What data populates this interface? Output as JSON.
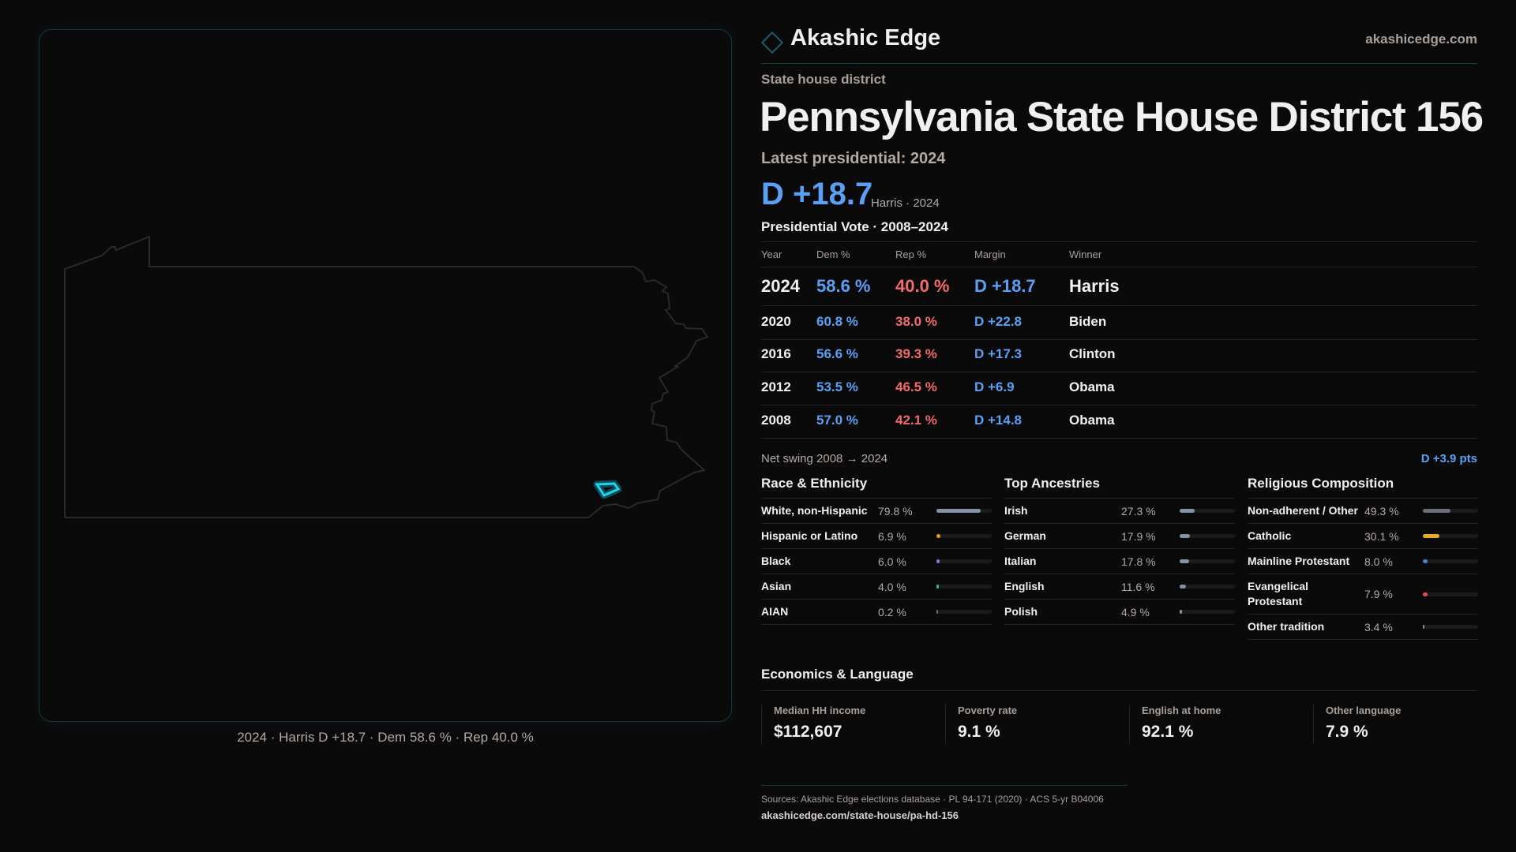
{
  "map": {
    "caption": "2024 · Harris D +18.7 · Dem 58.6 % · Rep 40.0 %",
    "highlight_color": "#22d3ee"
  },
  "header": {
    "brand": "Akashic Edge",
    "site": "akashicedge.com"
  },
  "kicker": "State house district",
  "title": "Pennsylvania State House District 156",
  "latest": {
    "label": "Latest presidential: 2024",
    "margin": "D +18.7",
    "sub": "Harris · 2024"
  },
  "table": {
    "title": "Presidential Vote · 2008–2024",
    "headers": [
      "Year",
      "Dem %",
      "Rep %",
      "Margin",
      "Winner"
    ],
    "rows": [
      {
        "year": "2024",
        "dem": "58.6 %",
        "rep": "40.0 %",
        "margin": "D +18.7",
        "winner": "Harris"
      },
      {
        "year": "2020",
        "dem": "60.8 %",
        "rep": "38.0 %",
        "margin": "D +22.8",
        "winner": "Biden"
      },
      {
        "year": "2016",
        "dem": "56.6 %",
        "rep": "39.3 %",
        "margin": "D +17.3",
        "winner": "Clinton"
      },
      {
        "year": "2012",
        "dem": "53.5 %",
        "rep": "46.5 %",
        "margin": "D +6.9",
        "winner": "Obama"
      },
      {
        "year": "2008",
        "dem": "57.0 %",
        "rep": "42.1 %",
        "margin": "D +14.8",
        "winner": "Obama"
      }
    ]
  },
  "swing": {
    "label": "Net swing 2008 → 2024",
    "value": "D +3.9 pts"
  },
  "race": {
    "title": "Race & Ethnicity",
    "items": [
      {
        "label": "White, non-Hispanic",
        "value": "79.8 %",
        "pct": 79.8,
        "color": "#8492a3"
      },
      {
        "label": "Hispanic or Latino",
        "value": "6.9 %",
        "pct": 6.9,
        "color": "#e3a21a"
      },
      {
        "label": "Black",
        "value": "6.0 %",
        "pct": 6.0,
        "color": "#8b6fd9"
      },
      {
        "label": "Asian",
        "value": "4.0 %",
        "pct": 4.0,
        "color": "#2fb98a"
      },
      {
        "label": "AIAN",
        "value": "0.2 %",
        "pct": 0.2,
        "color": "#6a6f7a"
      }
    ]
  },
  "ancestry": {
    "title": "Top Ancestries",
    "items": [
      {
        "label": "Irish",
        "value": "27.3 %",
        "pct": 27.3,
        "color": "#8492a3"
      },
      {
        "label": "German",
        "value": "17.9 %",
        "pct": 17.9,
        "color": "#8492a3"
      },
      {
        "label": "Italian",
        "value": "17.8 %",
        "pct": 17.8,
        "color": "#8492a3"
      },
      {
        "label": "English",
        "value": "11.6 %",
        "pct": 11.6,
        "color": "#8492a3"
      },
      {
        "label": "Polish",
        "value": "4.9 %",
        "pct": 4.9,
        "color": "#8492a3"
      }
    ]
  },
  "religion": {
    "title": "Religious Composition",
    "items": [
      {
        "label": "Non-adherent / Other",
        "value": "49.3 %",
        "pct": 49.3,
        "color": "#6a6f7a"
      },
      {
        "label": "Catholic",
        "value": "30.1 %",
        "pct": 30.1,
        "color": "#e3b020"
      },
      {
        "label": "Mainline Protestant",
        "value": "8.0 %",
        "pct": 8.0,
        "color": "#4a80d8"
      },
      {
        "label": "Evangelical Protestant",
        "value": "7.9 %",
        "pct": 7.9,
        "color": "#e04a55"
      },
      {
        "label": "Other tradition",
        "value": "3.4 %",
        "pct": 3.4,
        "color": "#8a8a8a"
      }
    ]
  },
  "economics": {
    "title": "Economics & Language",
    "cards": [
      {
        "label": "Median HH income",
        "value": "$112,607"
      },
      {
        "label": "Poverty rate",
        "value": "9.1 %"
      },
      {
        "label": "English at home",
        "value": "92.1 %"
      },
      {
        "label": "Other language",
        "value": "7.9 %"
      }
    ]
  },
  "footer": {
    "sources": "Sources: Akashic Edge elections database · PL 94-171 (2020) · ACS 5-yr B04006",
    "url": "akashicedge.com/state-house/pa-hd-156"
  }
}
